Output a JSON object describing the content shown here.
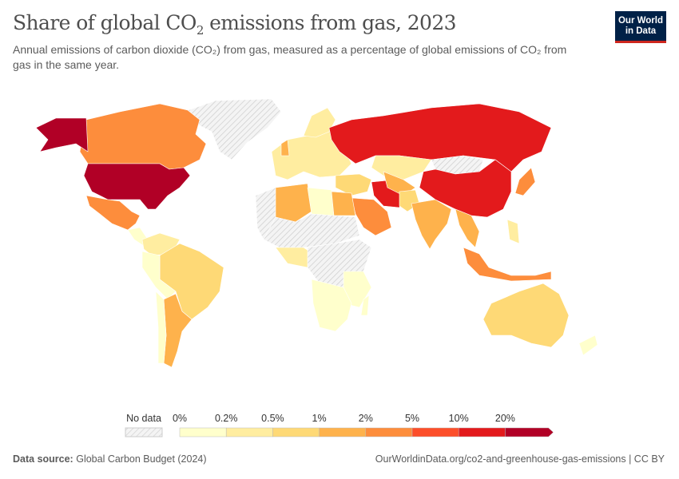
{
  "header": {
    "title_main": "Share of global CO",
    "title_sub": "2",
    "title_rest": " emissions from gas, 2023",
    "subtitle": "Annual emissions of carbon dioxide (CO₂) from gas, measured as a percentage of global emissions of CO₂ from gas in the same year."
  },
  "logo": {
    "line1": "Our World",
    "line2": "in Data"
  },
  "legend": {
    "no_data_label": "No data",
    "no_data_color": "#e0e0e0",
    "ticks": [
      "0%",
      "0.2%",
      "0.5%",
      "1%",
      "2%",
      "5%",
      "10%",
      "20%"
    ],
    "colors": [
      "#ffffcc",
      "#ffeda0",
      "#fed976",
      "#feb24c",
      "#fd8d3c",
      "#fc4e2a",
      "#e31a1c",
      "#b10026"
    ]
  },
  "footer": {
    "source_label": "Data source:",
    "source": "Global Carbon Budget (2024)",
    "url": "OurWorldinData.org/co2-and-greenhouse-gas-emissions | CC BY"
  }
}
